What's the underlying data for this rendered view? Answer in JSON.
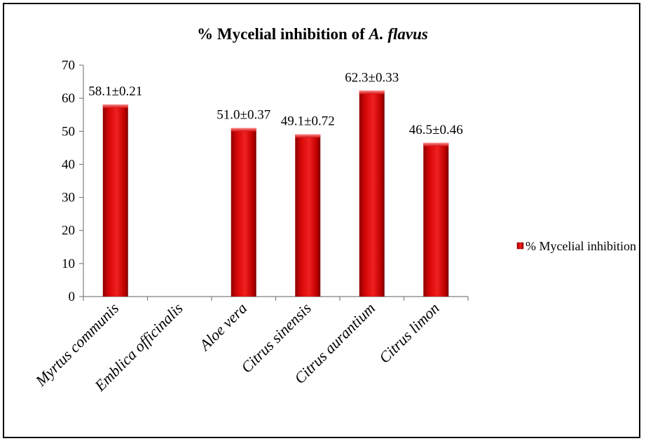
{
  "chart_data": {
    "type": "bar",
    "title_prefix": "% Mycelial inhibition of ",
    "title_italic": "A. flavus",
    "categories": [
      "Myrtus  communis",
      "Emblica officinalis",
      "Aloe vera",
      "Citrus sinensis",
      "Citrus aurantium",
      "Citrus limon"
    ],
    "series": [
      {
        "name": "% Mycelial inhibition",
        "values": [
          58.1,
          null,
          51.0,
          49.1,
          62.3,
          46.5
        ],
        "labels": [
          "58.1±0.21",
          "",
          "51.0±0.37",
          "49.1±0.72",
          "62.3±0.33",
          "46.5±0.46"
        ]
      }
    ],
    "ylim": [
      0,
      70
    ],
    "yticks": [
      "0",
      "10",
      "20",
      "30",
      "40",
      "50",
      "60",
      "70"
    ],
    "xlabel": "",
    "ylabel": "",
    "grid": false,
    "legend_position": "right",
    "bar_color": "#c00000"
  }
}
